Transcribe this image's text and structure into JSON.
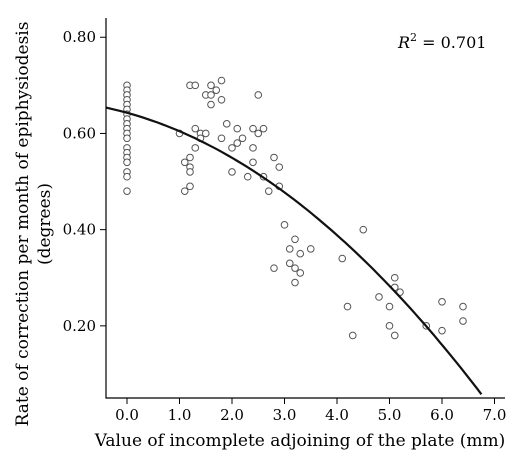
{
  "chart_data": {
    "type": "scatter",
    "xlabel": "Value of incomplete adjoining of the plate (mm)",
    "ylabel_line1": "Rate of correction per month of epiphysiodesis",
    "ylabel_line2": "(degrees)",
    "annotation": {
      "r2_symbol": "R",
      "r2_exp": "2",
      "r2_value": " = 0.701"
    },
    "xlim": [
      -0.4,
      7.2
    ],
    "ylim": [
      0.05,
      0.84
    ],
    "xticks": [
      0,
      1,
      2,
      3,
      4,
      5,
      6,
      7
    ],
    "xtick_labels": [
      "0.0",
      "1.0",
      "2.0",
      "3.0",
      "4.0",
      "5.0",
      "6.0",
      "7.0"
    ],
    "yticks": [
      0.2,
      0.4,
      0.6,
      0.8
    ],
    "ytick_labels": [
      "0.20",
      "0.40",
      "0.60",
      "0.80"
    ],
    "grid": false,
    "fit_curve": {
      "type": "quadratic",
      "coefficients": {
        "a": 0.643,
        "b": -0.03,
        "c": -0.0084
      },
      "x_range": [
        -0.4,
        6.75
      ]
    },
    "points": [
      {
        "x": 0,
        "y": 0.7
      },
      {
        "x": 0,
        "y": 0.69
      },
      {
        "x": 0,
        "y": 0.68
      },
      {
        "x": 0,
        "y": 0.67
      },
      {
        "x": 0,
        "y": 0.66
      },
      {
        "x": 0,
        "y": 0.65
      },
      {
        "x": 0,
        "y": 0.64
      },
      {
        "x": 0,
        "y": 0.63
      },
      {
        "x": 0,
        "y": 0.62
      },
      {
        "x": 0,
        "y": 0.61
      },
      {
        "x": 0,
        "y": 0.6
      },
      {
        "x": 0,
        "y": 0.59
      },
      {
        "x": 0,
        "y": 0.57
      },
      {
        "x": 0,
        "y": 0.56
      },
      {
        "x": 0,
        "y": 0.55
      },
      {
        "x": 0,
        "y": 0.54
      },
      {
        "x": 0,
        "y": 0.52
      },
      {
        "x": 0,
        "y": 0.51
      },
      {
        "x": 0,
        "y": 0.48
      },
      {
        "x": 1.0,
        "y": 0.6
      },
      {
        "x": 1.1,
        "y": 0.54
      },
      {
        "x": 1.1,
        "y": 0.48
      },
      {
        "x": 1.2,
        "y": 0.7
      },
      {
        "x": 1.2,
        "y": 0.55
      },
      {
        "x": 1.2,
        "y": 0.53
      },
      {
        "x": 1.2,
        "y": 0.52
      },
      {
        "x": 1.2,
        "y": 0.49
      },
      {
        "x": 1.3,
        "y": 0.7
      },
      {
        "x": 1.3,
        "y": 0.61
      },
      {
        "x": 1.3,
        "y": 0.57
      },
      {
        "x": 1.4,
        "y": 0.6
      },
      {
        "x": 1.4,
        "y": 0.59
      },
      {
        "x": 1.5,
        "y": 0.68
      },
      {
        "x": 1.5,
        "y": 0.6
      },
      {
        "x": 1.6,
        "y": 0.7
      },
      {
        "x": 1.6,
        "y": 0.68
      },
      {
        "x": 1.6,
        "y": 0.66
      },
      {
        "x": 1.7,
        "y": 0.69
      },
      {
        "x": 1.8,
        "y": 0.71
      },
      {
        "x": 1.8,
        "y": 0.67
      },
      {
        "x": 1.8,
        "y": 0.59
      },
      {
        "x": 1.9,
        "y": 0.62
      },
      {
        "x": 2.0,
        "y": 0.57
      },
      {
        "x": 2.0,
        "y": 0.52
      },
      {
        "x": 2.1,
        "y": 0.61
      },
      {
        "x": 2.1,
        "y": 0.58
      },
      {
        "x": 2.2,
        "y": 0.59
      },
      {
        "x": 2.3,
        "y": 0.51
      },
      {
        "x": 2.4,
        "y": 0.61
      },
      {
        "x": 2.4,
        "y": 0.57
      },
      {
        "x": 2.4,
        "y": 0.54
      },
      {
        "x": 2.5,
        "y": 0.68
      },
      {
        "x": 2.5,
        "y": 0.6
      },
      {
        "x": 2.6,
        "y": 0.61
      },
      {
        "x": 2.6,
        "y": 0.51
      },
      {
        "x": 2.7,
        "y": 0.48
      },
      {
        "x": 2.8,
        "y": 0.55
      },
      {
        "x": 2.8,
        "y": 0.32
      },
      {
        "x": 2.9,
        "y": 0.53
      },
      {
        "x": 2.9,
        "y": 0.49
      },
      {
        "x": 3.0,
        "y": 0.41
      },
      {
        "x": 3.1,
        "y": 0.36
      },
      {
        "x": 3.1,
        "y": 0.33
      },
      {
        "x": 3.2,
        "y": 0.38
      },
      {
        "x": 3.2,
        "y": 0.32
      },
      {
        "x": 3.2,
        "y": 0.29
      },
      {
        "x": 3.3,
        "y": 0.35
      },
      {
        "x": 3.3,
        "y": 0.31
      },
      {
        "x": 3.5,
        "y": 0.36
      },
      {
        "x": 4.1,
        "y": 0.34
      },
      {
        "x": 4.2,
        "y": 0.24
      },
      {
        "x": 4.3,
        "y": 0.18
      },
      {
        "x": 4.5,
        "y": 0.4
      },
      {
        "x": 4.8,
        "y": 0.26
      },
      {
        "x": 5.0,
        "y": 0.24
      },
      {
        "x": 5.0,
        "y": 0.2
      },
      {
        "x": 5.1,
        "y": 0.3
      },
      {
        "x": 5.1,
        "y": 0.28
      },
      {
        "x": 5.1,
        "y": 0.18
      },
      {
        "x": 5.2,
        "y": 0.27
      },
      {
        "x": 5.7,
        "y": 0.2
      },
      {
        "x": 6.0,
        "y": 0.25
      },
      {
        "x": 6.0,
        "y": 0.19
      },
      {
        "x": 6.4,
        "y": 0.24
      },
      {
        "x": 6.4,
        "y": 0.21
      }
    ]
  }
}
